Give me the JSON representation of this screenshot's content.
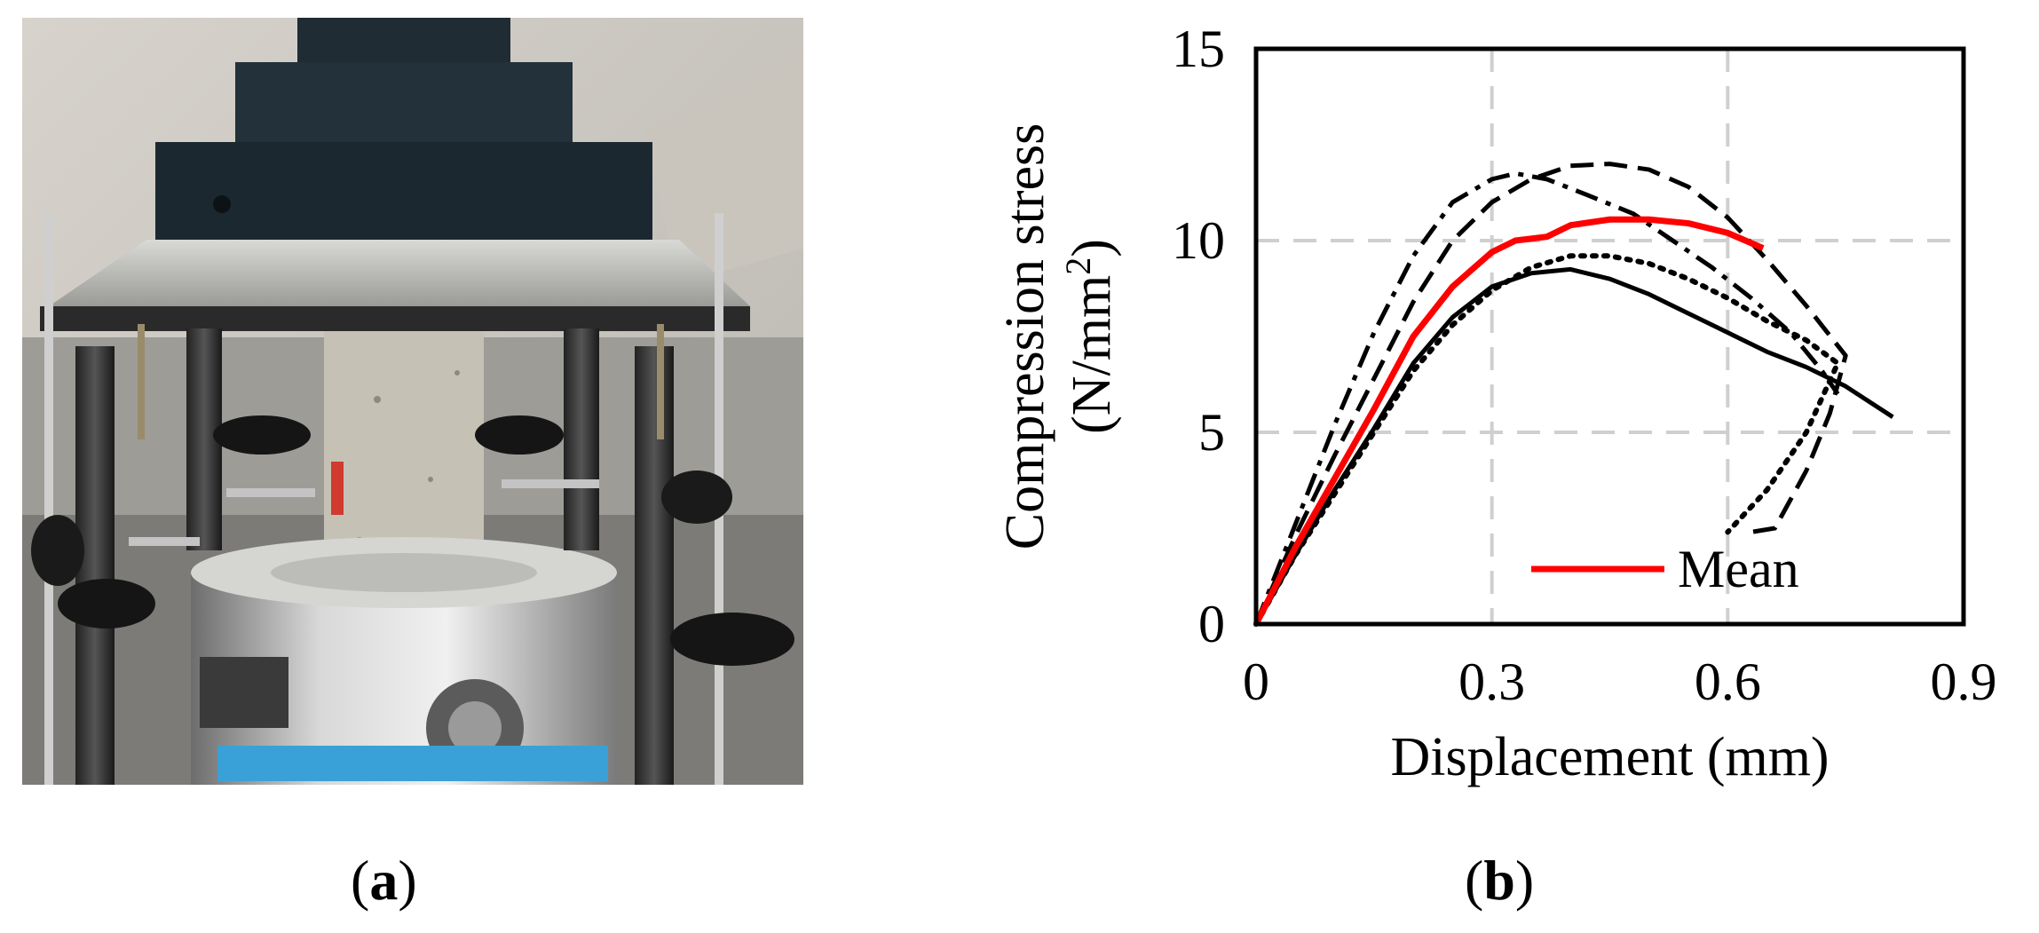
{
  "panels": {
    "a": {
      "label": "a"
    },
    "b": {
      "label": "b"
    }
  },
  "chart_data": {
    "type": "line",
    "xlabel": "Displacement (mm)",
    "ylabel_line1": "Compression stress",
    "ylabel_line2": "(N/mm",
    "ylabel_sup": "2",
    "ylabel_close": ")",
    "xlim": [
      0,
      0.9
    ],
    "ylim": [
      0,
      15
    ],
    "xticks": [
      "0",
      "0.3",
      "0.6",
      "0.9"
    ],
    "yticks": [
      "0",
      "5",
      "10",
      "15"
    ],
    "xtick_values": [
      0,
      0.3,
      0.6,
      0.9
    ],
    "ytick_values": [
      0,
      5,
      10,
      15
    ],
    "grid": true,
    "legend_position": "bottom-right",
    "series": [
      {
        "name": "Mean",
        "color": "#ff0000",
        "style": "solid",
        "points": [
          [
            0,
            0
          ],
          [
            0.05,
            2.0
          ],
          [
            0.1,
            3.8
          ],
          [
            0.15,
            5.6
          ],
          [
            0.2,
            7.5
          ],
          [
            0.25,
            8.8
          ],
          [
            0.3,
            9.7
          ],
          [
            0.33,
            10.0
          ],
          [
            0.37,
            10.1
          ],
          [
            0.4,
            10.4
          ],
          [
            0.45,
            10.55
          ],
          [
            0.5,
            10.55
          ],
          [
            0.55,
            10.45
          ],
          [
            0.6,
            10.2
          ],
          [
            0.645,
            9.8
          ]
        ]
      },
      {
        "color": "#000000",
        "style": "solid",
        "points": [
          [
            0,
            0
          ],
          [
            0.05,
            1.8
          ],
          [
            0.1,
            3.5
          ],
          [
            0.15,
            5.1
          ],
          [
            0.2,
            6.8
          ],
          [
            0.25,
            8.0
          ],
          [
            0.3,
            8.8
          ],
          [
            0.35,
            9.15
          ],
          [
            0.4,
            9.25
          ],
          [
            0.45,
            9.0
          ],
          [
            0.5,
            8.6
          ],
          [
            0.55,
            8.1
          ],
          [
            0.6,
            7.6
          ],
          [
            0.65,
            7.1
          ],
          [
            0.7,
            6.7
          ],
          [
            0.75,
            6.2
          ],
          [
            0.81,
            5.4
          ]
        ]
      },
      {
        "color": "#000000",
        "style": "dotted",
        "points": [
          [
            0,
            0
          ],
          [
            0.05,
            1.8
          ],
          [
            0.1,
            3.4
          ],
          [
            0.15,
            5.0
          ],
          [
            0.2,
            6.6
          ],
          [
            0.25,
            7.8
          ],
          [
            0.3,
            8.7
          ],
          [
            0.35,
            9.3
          ],
          [
            0.4,
            9.6
          ],
          [
            0.45,
            9.6
          ],
          [
            0.5,
            9.4
          ],
          [
            0.55,
            9.0
          ],
          [
            0.6,
            8.5
          ],
          [
            0.65,
            7.9
          ],
          [
            0.7,
            7.4
          ],
          [
            0.74,
            6.8
          ],
          [
            0.7,
            5.0
          ],
          [
            0.65,
            3.5
          ],
          [
            0.6,
            2.4
          ]
        ]
      },
      {
        "color": "#000000",
        "style": "dashed",
        "points": [
          [
            0,
            0
          ],
          [
            0.05,
            2.3
          ],
          [
            0.1,
            4.4
          ],
          [
            0.15,
            6.4
          ],
          [
            0.2,
            8.4
          ],
          [
            0.25,
            10.0
          ],
          [
            0.3,
            11.0
          ],
          [
            0.35,
            11.6
          ],
          [
            0.4,
            11.95
          ],
          [
            0.45,
            12.0
          ],
          [
            0.5,
            11.85
          ],
          [
            0.55,
            11.4
          ],
          [
            0.6,
            10.6
          ],
          [
            0.65,
            9.5
          ],
          [
            0.7,
            8.3
          ],
          [
            0.75,
            7.0
          ],
          [
            0.73,
            5.5
          ],
          [
            0.7,
            4.0
          ],
          [
            0.66,
            2.5
          ],
          [
            0.63,
            2.4
          ]
        ]
      },
      {
        "color": "#000000",
        "style": "dashdot",
        "points": [
          [
            0,
            0
          ],
          [
            0.05,
            2.6
          ],
          [
            0.1,
            5.2
          ],
          [
            0.15,
            7.6
          ],
          [
            0.2,
            9.6
          ],
          [
            0.25,
            11.0
          ],
          [
            0.3,
            11.6
          ],
          [
            0.33,
            11.75
          ],
          [
            0.37,
            11.6
          ],
          [
            0.42,
            11.2
          ],
          [
            0.48,
            10.7
          ],
          [
            0.53,
            10.0
          ],
          [
            0.58,
            9.3
          ],
          [
            0.63,
            8.5
          ],
          [
            0.68,
            7.6
          ],
          [
            0.72,
            6.6
          ],
          [
            0.74,
            6.0
          ]
        ]
      }
    ]
  }
}
